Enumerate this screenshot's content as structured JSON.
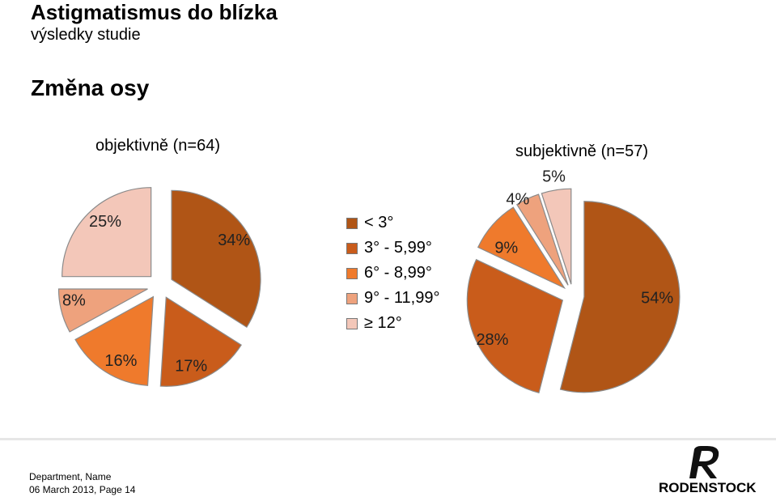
{
  "header": {
    "title": "Astigmatismus do blízka",
    "subtitle": "výsledky studie",
    "section": "Změna osy"
  },
  "legend": {
    "items": [
      {
        "label": "< 3°",
        "color": "#B05516"
      },
      {
        "label": "3° - 5,99°",
        "color": "#C95C1B"
      },
      {
        "label": "6° - 8,99°",
        "color": "#EF7A2C"
      },
      {
        "label": "9° - 11,99°",
        "color": "#EEA27D"
      },
      {
        "label": "≥ 12°",
        "color": "#F3C7B9"
      }
    ]
  },
  "chart_data": [
    {
      "type": "pie",
      "title": "objektivně (n=64)",
      "slices": [
        {
          "label": "< 3°",
          "value": 34,
          "display": "34%",
          "color": "#B05516"
        },
        {
          "label": "3° - 5,99°",
          "value": 17,
          "display": "17%",
          "color": "#C95C1B"
        },
        {
          "label": "6° - 8,99°",
          "value": 16,
          "display": "16%",
          "color": "#EF7A2C"
        },
        {
          "label": "9° - 11,99°",
          "value": 8,
          "display": "8%",
          "color": "#EEA27D"
        },
        {
          "label": "≥ 12°",
          "value": 25,
          "display": "25%",
          "color": "#F3C7B9"
        }
      ]
    },
    {
      "type": "pie",
      "title": "subjektivně (n=57)",
      "slices": [
        {
          "label": "< 3°",
          "value": 54,
          "display": "54%",
          "color": "#B05516"
        },
        {
          "label": "3° - 5,99°",
          "value": 28,
          "display": "28%",
          "color": "#C95C1B"
        },
        {
          "label": "6° - 8,99°",
          "value": 9,
          "display": "9%",
          "color": "#EF7A2C"
        },
        {
          "label": "9° - 11,99°",
          "value": 4,
          "display": "4%",
          "color": "#EEA27D"
        },
        {
          "label": "≥ 12°",
          "value": 5,
          "display": "5%",
          "color": "#F3C7B9"
        }
      ]
    }
  ],
  "footer": {
    "department": "Department, Name",
    "date_page": "06 March 2013, Page 14",
    "logo_text": "RODENSTOCK"
  }
}
